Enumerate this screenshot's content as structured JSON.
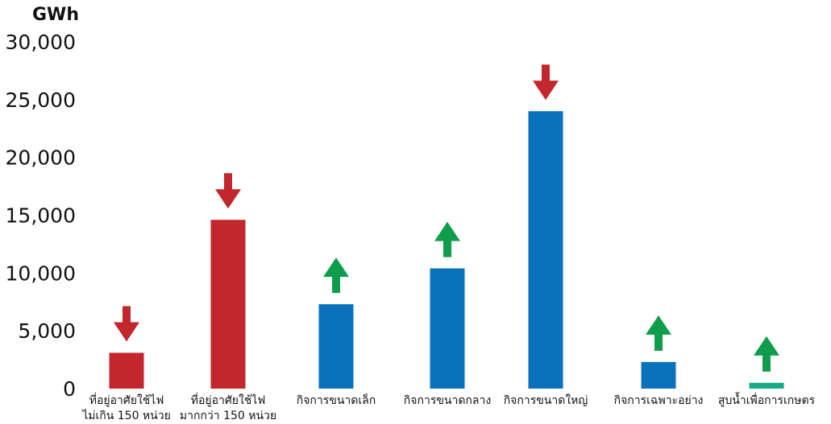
{
  "chart_data": {
    "type": "bar",
    "ylabel": "GWh",
    "ylim": [
      0,
      30000
    ],
    "y_ticks": [
      0,
      5000,
      10000,
      15000,
      20000,
      25000,
      30000
    ],
    "y_tick_labels": [
      "0",
      "5,000",
      "10,000",
      "15,000",
      "20,000",
      "25,000",
      "30,000"
    ],
    "grid": false,
    "categories": [
      [
        "ที่อยู่อาศัยใช้ไฟ",
        "ไม่เกิน 150 หน่วย"
      ],
      [
        "ที่อยู่อาศัยใช้ไฟ",
        "มากกว่า 150 หน่วย"
      ],
      [
        "กิจการขนาดเล็ก"
      ],
      [
        "กิจการขนาดกลาง"
      ],
      [
        "กิจการขนาดใหญ่"
      ],
      [
        "กิจการเฉพาะอย่าง"
      ],
      [
        "สูบน้ำเพื่อการเกษตร"
      ]
    ],
    "values": [
      3100,
      14600,
      7300,
      10400,
      24000,
      2300,
      500
    ],
    "bar_colors": [
      "#c1272d",
      "#c1272d",
      "#0a72bd",
      "#0a72bd",
      "#0a72bd",
      "#0a72bd",
      "#19a985"
    ],
    "trend": [
      "down",
      "down",
      "up",
      "up",
      "down",
      "up",
      "up"
    ],
    "trend_colors": {
      "down": "#c1272d",
      "up": "#0f9d4b"
    }
  }
}
